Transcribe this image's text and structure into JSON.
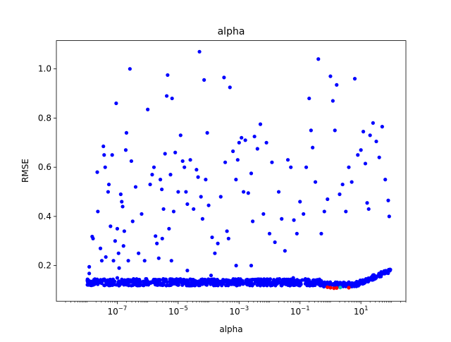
{
  "chart_data": {
    "type": "scatter",
    "title": "alpha",
    "xlabel": "alpha",
    "ylabel": "RMSE",
    "x_scale": "log",
    "xlim": [
      1e-09,
      300
    ],
    "ylim": [
      0.055,
      1.115
    ],
    "x_ticks": [
      {
        "value": 1e-07,
        "base": "10",
        "exp": "−7"
      },
      {
        "value": 1e-05,
        "base": "10",
        "exp": "−5"
      },
      {
        "value": 0.001,
        "base": "10",
        "exp": "−3"
      },
      {
        "value": 0.1,
        "base": "10",
        "exp": "−1"
      },
      {
        "value": 10,
        "base": "10",
        "exp": "1"
      }
    ],
    "y_ticks": [
      {
        "value": 0.2,
        "label": "0.2"
      },
      {
        "value": 0.4,
        "label": "0.4"
      },
      {
        "value": 0.6,
        "label": "0.6"
      },
      {
        "value": 0.8,
        "label": "0.8"
      },
      {
        "value": 1.0,
        "label": "1.0"
      }
    ],
    "grid": false,
    "legend": "none",
    "colors": {
      "trials": "#0000ff",
      "best": "#ff0000",
      "optimum": "#00bfbf"
    },
    "series": [
      {
        "role": "trials",
        "color": "#0000ff",
        "points": [
          [
            1.2e-08,
            0.168
          ],
          [
            1.2e-08,
            0.195
          ],
          [
            1.5e-08,
            0.318
          ],
          [
            1.6e-08,
            0.31
          ],
          [
            2.2e-08,
            0.58
          ],
          [
            2.3e-08,
            0.42
          ],
          [
            2.8e-08,
            0.27
          ],
          [
            3.1e-08,
            0.22
          ],
          [
            3.5e-08,
            0.685
          ],
          [
            3.7e-08,
            0.65
          ],
          [
            4e-08,
            0.6
          ],
          [
            4.2e-08,
            0.235
          ],
          [
            5e-08,
            0.5
          ],
          [
            5.3e-08,
            0.53
          ],
          [
            6e-08,
            0.36
          ],
          [
            6.8e-08,
            0.65
          ],
          [
            7.5e-08,
            0.22
          ],
          [
            8.5e-08,
            0.3
          ],
          [
            9.2e-08,
            0.86
          ],
          [
            1e-07,
            0.35
          ],
          [
            1.1e-07,
            0.25
          ],
          [
            1.15e-07,
            0.19
          ],
          [
            1.3e-07,
            0.49
          ],
          [
            1.4e-07,
            0.46
          ],
          [
            1.5e-07,
            0.44
          ],
          [
            1.6e-07,
            0.28
          ],
          [
            1.7e-07,
            0.34
          ],
          [
            1.9e-07,
            0.67
          ],
          [
            2e-07,
            0.74
          ],
          [
            2.3e-07,
            0.22
          ],
          [
            2.6e-07,
            1.0
          ],
          [
            2.9e-07,
            0.625
          ],
          [
            3.2e-07,
            0.38
          ],
          [
            4e-07,
            0.52
          ],
          [
            5e-07,
            0.25
          ],
          [
            6.3e-07,
            0.41
          ],
          [
            7.9e-07,
            0.22
          ],
          [
            1e-06,
            0.835
          ],
          [
            1.2e-06,
            0.53
          ],
          [
            1.4e-06,
            0.57
          ],
          [
            1.6e-06,
            0.6
          ],
          [
            1.8e-06,
            0.32
          ],
          [
            2e-06,
            0.29
          ],
          [
            2.3e-06,
            0.23
          ],
          [
            2.6e-06,
            0.55
          ],
          [
            2.9e-06,
            0.51
          ],
          [
            3.3e-06,
            0.43
          ],
          [
            3.7e-06,
            0.655
          ],
          [
            4.2e-06,
            0.89
          ],
          [
            4.5e-06,
            0.975
          ],
          [
            5e-06,
            0.35
          ],
          [
            5.6e-06,
            0.57
          ],
          [
            6.3e-06,
            0.88
          ],
          [
            7.1e-06,
            0.42
          ],
          [
            8e-06,
            0.66
          ],
          [
            1e-05,
            0.5
          ],
          [
            1.2e-05,
            0.73
          ],
          [
            1.4e-05,
            0.625
          ],
          [
            1.6e-05,
            0.6
          ],
          [
            1.8e-05,
            0.5
          ],
          [
            2e-05,
            0.45
          ],
          [
            2.5e-05,
            0.63
          ],
          [
            3.2e-05,
            0.43
          ],
          [
            4e-05,
            0.59
          ],
          [
            4.5e-05,
            0.56
          ],
          [
            5e-05,
            1.07
          ],
          [
            5.6e-05,
            0.48
          ],
          [
            6.3e-05,
            0.39
          ],
          [
            7.1e-05,
            0.955
          ],
          [
            8e-05,
            0.55
          ],
          [
            9e-05,
            0.74
          ],
          [
            0.0001,
            0.445
          ],
          [
            0.00013,
            0.315
          ],
          [
            0.00016,
            0.25
          ],
          [
            0.0002,
            0.29
          ],
          [
            0.00025,
            0.48
          ],
          [
            0.00032,
            0.965
          ],
          [
            0.00035,
            0.62
          ],
          [
            0.0004,
            0.34
          ],
          [
            0.00045,
            0.31
          ],
          [
            0.0005,
            0.925
          ],
          [
            0.00063,
            0.665
          ],
          [
            0.00079,
            0.55
          ],
          [
            0.0009,
            0.63
          ],
          [
            0.001,
            0.7
          ],
          [
            0.0012,
            0.72
          ],
          [
            0.0014,
            0.5
          ],
          [
            0.0016,
            0.71
          ],
          [
            0.002,
            0.495
          ],
          [
            0.0025,
            0.575
          ],
          [
            0.0028,
            0.38
          ],
          [
            0.0032,
            0.725
          ],
          [
            0.004,
            0.675
          ],
          [
            0.005,
            0.775
          ],
          [
            0.0063,
            0.41
          ],
          [
            0.0079,
            0.7
          ],
          [
            0.01,
            0.33
          ],
          [
            0.012,
            0.62
          ],
          [
            0.015,
            0.295
          ],
          [
            0.02,
            0.5
          ],
          [
            0.025,
            0.39
          ],
          [
            0.032,
            0.26
          ],
          [
            0.04,
            0.63
          ],
          [
            0.05,
            0.6
          ],
          [
            0.063,
            0.385
          ],
          [
            0.079,
            0.33
          ],
          [
            0.1,
            0.46
          ],
          [
            0.13,
            0.41
          ],
          [
            0.16,
            0.6
          ],
          [
            0.2,
            0.88
          ],
          [
            0.23,
            0.75
          ],
          [
            0.26,
            0.68
          ],
          [
            0.32,
            0.54
          ],
          [
            0.4,
            1.04
          ],
          [
            0.5,
            0.33
          ],
          [
            0.63,
            0.42
          ],
          [
            0.8,
            0.47
          ],
          [
            1.0,
            0.97
          ],
          [
            1.2,
            0.87
          ],
          [
            1.4,
            0.75
          ],
          [
            1.6,
            0.935
          ],
          [
            2.0,
            0.49
          ],
          [
            2.5,
            0.53
          ],
          [
            3.2,
            0.42
          ],
          [
            4.0,
            0.6
          ],
          [
            5.0,
            0.54
          ],
          [
            6.3,
            0.96
          ],
          [
            7.9,
            0.65
          ],
          [
            10.0,
            0.67
          ],
          [
            12.0,
            0.745
          ],
          [
            14.0,
            0.615
          ],
          [
            16.0,
            0.455
          ],
          [
            18.0,
            0.43
          ],
          [
            20.0,
            0.73
          ],
          [
            25.0,
            0.78
          ],
          [
            32.0,
            0.705
          ],
          [
            40.0,
            0.64
          ],
          [
            50.0,
            0.765
          ],
          [
            63.0,
            0.55
          ],
          [
            79.0,
            0.465
          ],
          [
            85.0,
            0.4
          ],
          [
            3e-06,
            0.31
          ],
          [
            3.2e-07,
            0.12
          ],
          [
            0.0025,
            0.2
          ],
          [
            0.06,
            0.15
          ],
          [
            6e-06,
            0.22
          ],
          [
            0.0008,
            0.2
          ],
          [
            2e-05,
            0.18
          ],
          [
            0.00012,
            0.16
          ],
          [
            4e-06,
            0.14
          ],
          [
            0.001,
            0.13
          ],
          [
            1e-07,
            0.15
          ],
          [
            3e-08,
            0.13
          ]
        ]
      },
      {
        "role": "best",
        "color": "#ff0000",
        "points": [
          [
            0.8,
            0.112
          ],
          [
            1.0,
            0.11
          ],
          [
            1.3,
            0.108
          ],
          [
            1.6,
            0.109
          ],
          [
            4.0,
            0.11
          ]
        ]
      },
      {
        "role": "optimum",
        "color": "#00bfbf",
        "points": [
          [
            2.1,
            0.111
          ]
        ]
      }
    ]
  }
}
